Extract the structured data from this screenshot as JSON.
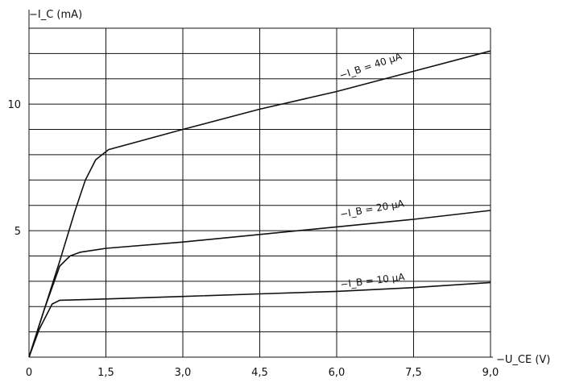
{
  "chart_data": {
    "type": "line",
    "title": "",
    "ylabel": "−I_C (mA)",
    "xlabel": "−U_CE (V)",
    "xlim": [
      0,
      9
    ],
    "ylim": [
      0,
      13
    ],
    "x_ticks": [
      "0",
      "1,5",
      "3,0",
      "4,5",
      "6,0",
      "7,5",
      "9,0"
    ],
    "y_ticks": [
      "5",
      "10"
    ],
    "grid": true,
    "series": [
      {
        "name": "−I_B = 40 µA",
        "label_text": "−I_B = 40 µA",
        "x": [
          0,
          0.3,
          0.6,
          0.9,
          1.1,
          1.3,
          1.55,
          3.0,
          4.5,
          6.0,
          7.5,
          9.0
        ],
        "y": [
          0,
          1.9,
          3.8,
          5.8,
          7.0,
          7.8,
          8.2,
          9.0,
          9.8,
          10.5,
          11.3,
          12.1
        ]
      },
      {
        "name": "−I_B = 20 µA",
        "label_text": "−I_B = 20 µA",
        "x": [
          0,
          0.3,
          0.6,
          0.8,
          1.0,
          1.5,
          3.0,
          4.5,
          6.0,
          7.5,
          9.0
        ],
        "y": [
          0,
          1.9,
          3.6,
          4.0,
          4.15,
          4.3,
          4.55,
          4.85,
          5.15,
          5.45,
          5.8
        ]
      },
      {
        "name": "−I_B = 10 µA",
        "label_text": "−I_B = 10 µA",
        "x": [
          0,
          0.2,
          0.45,
          0.6,
          1.5,
          3.0,
          4.5,
          6.0,
          7.5,
          9.0
        ],
        "y": [
          0,
          1.1,
          2.1,
          2.25,
          2.3,
          2.4,
          2.5,
          2.6,
          2.75,
          2.95
        ]
      }
    ],
    "legend": "inline labels"
  }
}
